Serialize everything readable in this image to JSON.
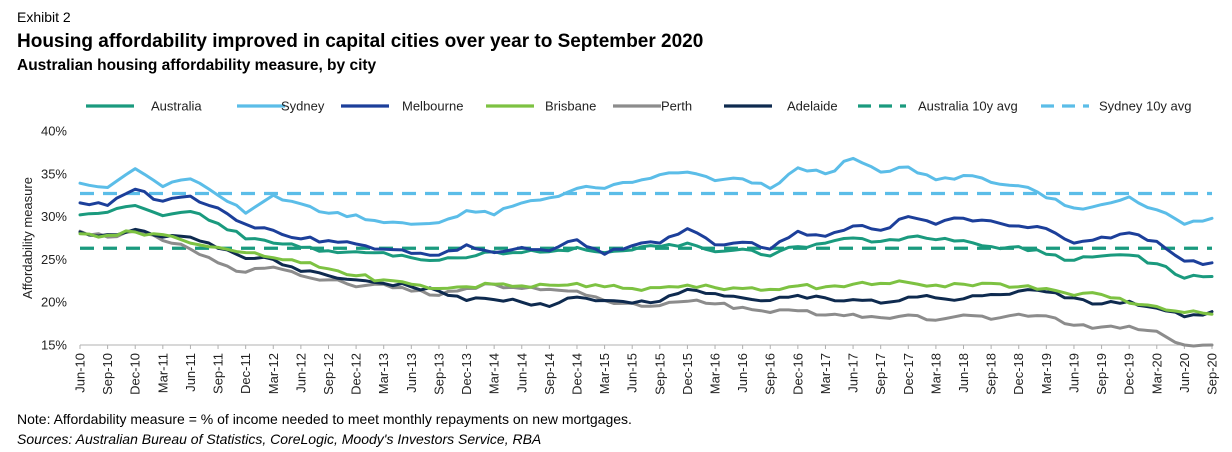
{
  "header": {
    "exhibit": "Exhibit 2",
    "title": "Housing affordability improved in capital cities over year to September 2020",
    "subtitle": "Australian housing affordability measure, by city"
  },
  "footer": {
    "note": "Note: Affordability measure = % of income needed to meet monthly repayments on new mortgages.",
    "sources": "Sources: Australian Bureau of Statistics, CoreLogic, Moody's Investors Service, RBA"
  },
  "chart_data": {
    "type": "line",
    "title": "Australian housing affordability measure, by city",
    "ylabel": "Affordability measure",
    "xlabel": "",
    "ylim": [
      15,
      40
    ],
    "yticks": [
      15,
      20,
      25,
      30,
      35,
      40
    ],
    "ytick_labels": [
      "15%",
      "20%",
      "25%",
      "30%",
      "35%",
      "40%"
    ],
    "grid": false,
    "legend_position": "top",
    "x_start": "Jun-10",
    "x_end": "Sep-20",
    "frequency": "monthly",
    "categories": [
      "Jun-10",
      "Sep-10",
      "Dec-10",
      "Mar-11",
      "Jun-11",
      "Sep-11",
      "Dec-11",
      "Mar-12",
      "Jun-12",
      "Sep-12",
      "Dec-12",
      "Mar-13",
      "Jun-13",
      "Sep-13",
      "Dec-13",
      "Mar-14",
      "Jun-14",
      "Sep-14",
      "Dec-14",
      "Mar-15",
      "Jun-15",
      "Sep-15",
      "Dec-15",
      "Mar-16",
      "Jun-16",
      "Sep-16",
      "Dec-16",
      "Mar-17",
      "Jun-17",
      "Sep-17",
      "Dec-17",
      "Mar-18",
      "Jun-18",
      "Sep-18",
      "Dec-18",
      "Mar-19",
      "Jun-19",
      "Sep-19",
      "Dec-19",
      "Mar-20",
      "Jun-20",
      "Sep-20"
    ],
    "series": [
      {
        "name": "Australia",
        "color": "#1a9a7e",
        "dashed": false,
        "values": [
          30.2,
          30.5,
          31.3,
          30.1,
          30.6,
          29.2,
          27.4,
          26.9,
          26.4,
          26.0,
          25.9,
          25.8,
          25.2,
          24.9,
          25.2,
          25.9,
          25.8,
          25.9,
          26.4,
          25.8,
          26.1,
          26.5,
          26.9,
          25.9,
          26.2,
          25.4,
          26.5,
          26.9,
          27.5,
          27.1,
          27.6,
          27.3,
          27.2,
          26.5,
          26.5,
          25.6,
          24.9,
          25.4,
          25.5,
          24.5,
          22.8,
          23.0
        ]
      },
      {
        "name": "Sydney",
        "color": "#5bbde8",
        "dashed": false,
        "values": [
          33.9,
          33.4,
          35.6,
          33.5,
          34.4,
          32.5,
          30.4,
          32.5,
          31.5,
          30.4,
          30.2,
          29.3,
          29.1,
          29.3,
          30.7,
          30.2,
          31.6,
          32.2,
          33.3,
          33.3,
          34.0,
          34.9,
          35.2,
          34.2,
          34.4,
          33.3,
          35.7,
          35.0,
          36.8,
          35.2,
          35.8,
          34.3,
          34.8,
          34.0,
          33.6,
          32.2,
          31.0,
          31.4,
          32.3,
          30.8,
          29.1,
          29.8
        ]
      },
      {
        "name": "Melbourne",
        "color": "#1c3f9a",
        "dashed": false,
        "values": [
          31.6,
          31.3,
          33.2,
          31.8,
          32.4,
          31.0,
          29.1,
          28.4,
          27.4,
          27.2,
          26.8,
          26.2,
          25.7,
          25.5,
          26.7,
          25.8,
          26.4,
          26.0,
          27.3,
          25.6,
          26.6,
          26.9,
          28.6,
          26.7,
          27.0,
          26.2,
          28.3,
          27.7,
          28.9,
          28.4,
          30.0,
          29.1,
          29.8,
          29.5,
          28.9,
          28.6,
          26.9,
          27.6,
          28.1,
          27.1,
          24.8,
          24.6
        ]
      },
      {
        "name": "Brisbane",
        "color": "#7dc242",
        "dashed": false,
        "values": [
          28.0,
          27.8,
          28.2,
          27.9,
          26.9,
          26.4,
          25.8,
          25.2,
          24.6,
          23.9,
          23.1,
          22.6,
          22.1,
          21.6,
          21.8,
          22.1,
          21.9,
          22.0,
          22.2,
          21.8,
          21.6,
          21.7,
          22.0,
          21.7,
          21.6,
          21.5,
          21.9,
          21.8,
          22.1,
          22.2,
          22.3,
          22.0,
          22.1,
          22.2,
          21.8,
          21.6,
          20.8,
          20.9,
          19.9,
          19.5,
          18.8,
          18.6
        ]
      },
      {
        "name": "Perth",
        "color": "#8c8c8c",
        "dashed": false,
        "values": [
          28.3,
          27.6,
          28.3,
          27.2,
          26.2,
          24.6,
          23.5,
          24.1,
          23.1,
          22.6,
          21.8,
          22.1,
          21.3,
          20.8,
          21.6,
          22.1,
          21.6,
          21.5,
          21.3,
          20.2,
          19.9,
          19.6,
          20.1,
          19.8,
          19.4,
          18.8,
          19.0,
          18.5,
          18.6,
          18.2,
          18.5,
          17.9,
          18.5,
          18.0,
          18.6,
          18.4,
          17.3,
          17.1,
          17.2,
          16.6,
          15.0,
          15.0
        ]
      },
      {
        "name": "Adelaide",
        "color": "#0e2a4f",
        "dashed": false,
        "values": [
          28.2,
          27.9,
          28.5,
          27.6,
          27.6,
          26.3,
          25.1,
          25.0,
          23.6,
          23.1,
          22.6,
          22.2,
          21.8,
          21.3,
          20.2,
          20.3,
          20.0,
          19.5,
          20.6,
          20.2,
          19.9,
          20.1,
          21.5,
          21.0,
          20.5,
          20.2,
          20.8,
          20.5,
          20.3,
          19.9,
          20.6,
          20.5,
          20.4,
          20.9,
          21.3,
          21.2,
          20.5,
          19.8,
          20.1,
          19.3,
          18.3,
          18.9
        ]
      },
      {
        "name": "Australia 10y avg",
        "color": "#1a9a7e",
        "dashed": true,
        "constant": 26.3
      },
      {
        "name": "Sydney 10y avg",
        "color": "#5bbde8",
        "dashed": true,
        "constant": 32.7
      }
    ]
  }
}
